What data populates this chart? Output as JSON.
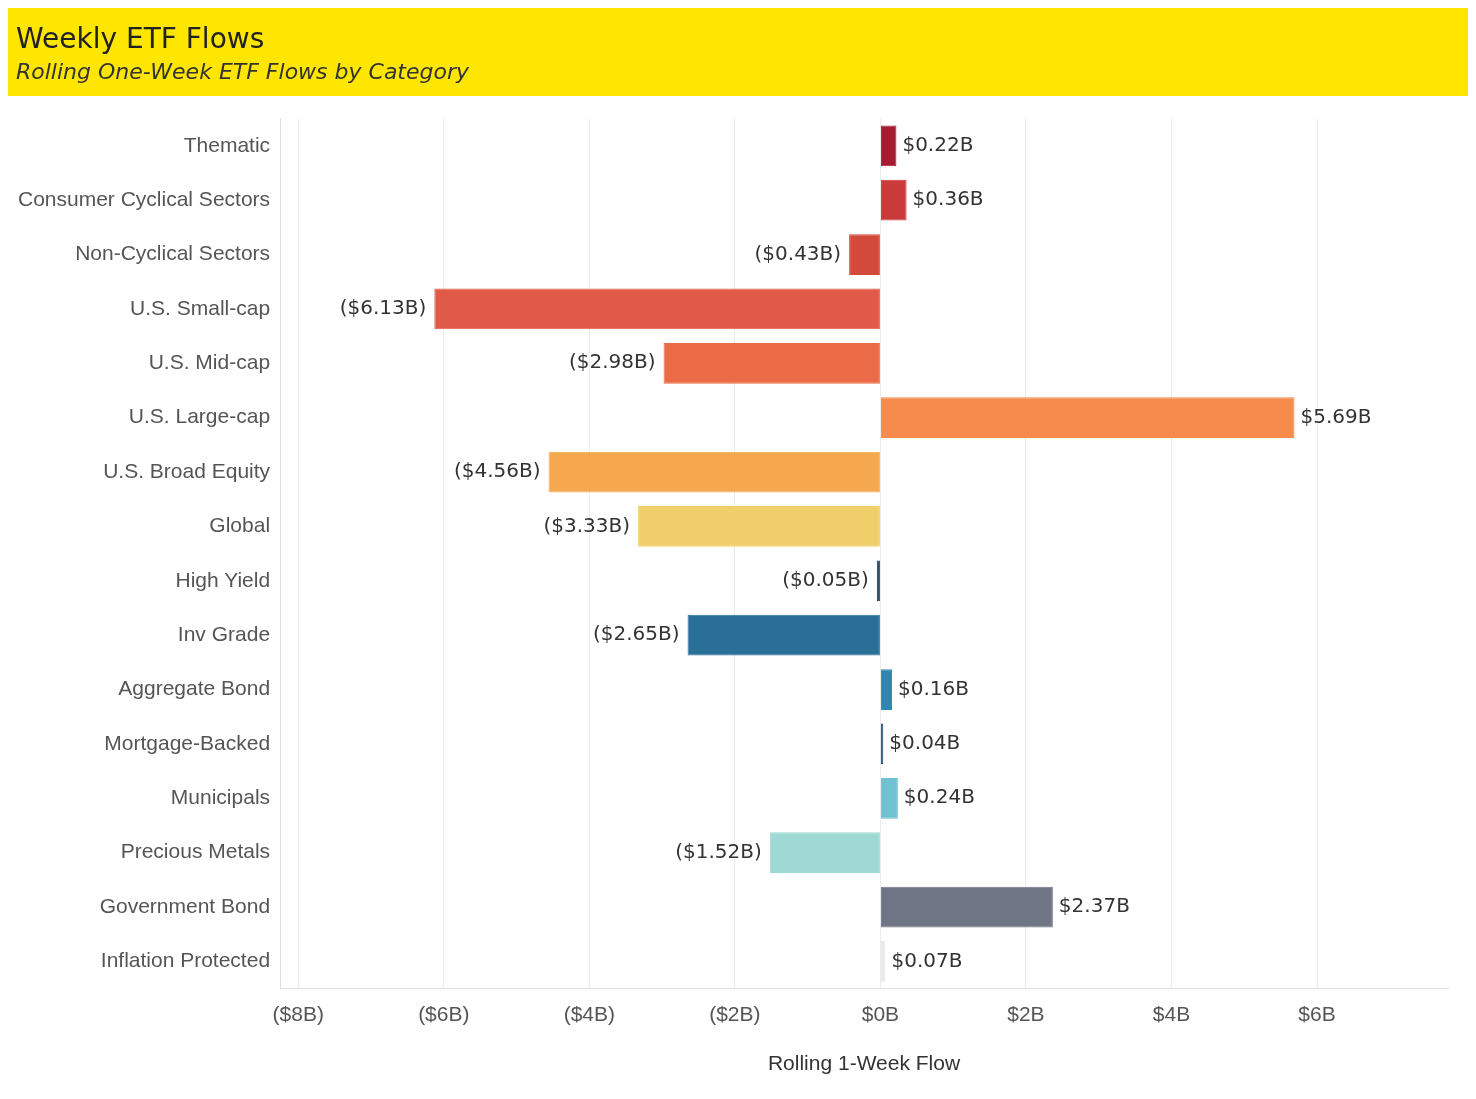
{
  "chart_data": {
    "type": "bar",
    "orientation": "horizontal",
    "title": "Weekly ETF Flows",
    "subtitle": "Rolling One-Week ETF Flows by Category",
    "xlabel": "Rolling 1-Week Flow",
    "categories": [
      "Thematic",
      "Consumer Cyclical Sectors",
      "Non-Cyclical Sectors",
      "U.S. Small-cap",
      "U.S. Mid-cap",
      "U.S. Large-cap",
      "U.S. Broad Equity",
      "Global",
      "High Yield",
      "Inv Grade",
      "Aggregate Bond",
      "Mortgage-Backed",
      "Municipals",
      "Precious Metals",
      "Government Bond",
      "Inflation Protected"
    ],
    "values": [
      0.22,
      0.36,
      -0.43,
      -6.13,
      -2.98,
      5.69,
      -4.56,
      -3.33,
      -0.05,
      -2.65,
      0.16,
      0.04,
      0.24,
      -1.52,
      2.37,
      0.07
    ],
    "value_labels": [
      "$0.22B",
      "$0.36B",
      "($0.43B)",
      "($6.13B)",
      "($2.98B)",
      "$5.69B",
      "($4.56B)",
      "($3.33B)",
      "($0.05B)",
      "($2.65B)",
      "$0.16B",
      "$0.04B",
      "$0.24B",
      "($1.52B)",
      "$2.37B",
      "$0.07B"
    ],
    "colors": [
      "#a51c30",
      "#c93a3a",
      "#d44a3a",
      "#e05a47",
      "#ea6b45",
      "#f58b4c",
      "#f6a84f",
      "#f0cf6a",
      "#1d3c5a",
      "#2a6f97",
      "#2f86b0",
      "#1f4e6e",
      "#6ec2d1",
      "#9fd9d3",
      "#6f7584",
      "#e8e8e8"
    ],
    "xlim": [
      -8.25,
      7.8
    ],
    "xticks": [
      {
        "value": -8,
        "label": "($8B)"
      },
      {
        "value": -6,
        "label": "($6B)"
      },
      {
        "value": -4,
        "label": "($4B)"
      },
      {
        "value": -2,
        "label": "($2B)"
      },
      {
        "value": 0,
        "label": "$0B"
      },
      {
        "value": 2,
        "label": "$2B"
      },
      {
        "value": 4,
        "label": "$4B"
      },
      {
        "value": 6,
        "label": "$6B"
      }
    ],
    "grid": "x",
    "legend": false
  }
}
